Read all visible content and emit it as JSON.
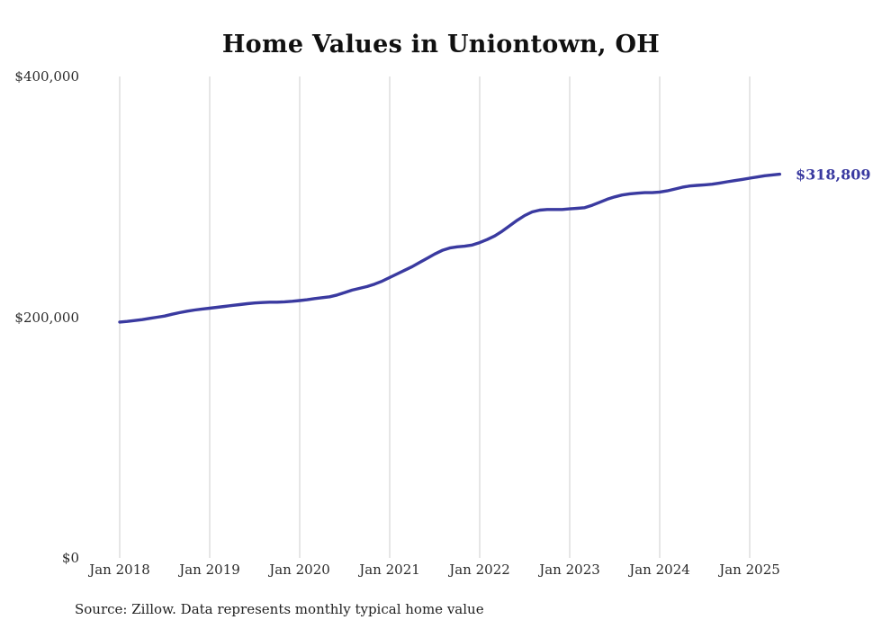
{
  "source": "Source: Zillow. Data represents monthly typical home value",
  "colors": {
    "line": "#3a3aa0",
    "grid": "#cccccc",
    "text": "#2b2b2b",
    "title": "#111111"
  },
  "chart_data": {
    "type": "line",
    "title": "Home Values in Uniontown, OH",
    "xlabel": "",
    "ylabel": "",
    "ylim": [
      0,
      400000
    ],
    "grid": "vertical-yearly",
    "legend": "none",
    "x_start": "Jan 2018",
    "x_interval": "monthly",
    "x_tick_labels": [
      "Jan 2018",
      "Jan 2019",
      "Jan 2020",
      "Jan 2021",
      "Jan 2022",
      "Jan 2023",
      "Jan 2024",
      "Jan 2025"
    ],
    "y_ticks": [
      {
        "label": "$0",
        "value": 0
      },
      {
        "label": "$200,000",
        "value": 200000
      },
      {
        "label": "$400,000",
        "value": 400000
      }
    ],
    "series_name": "Typical home value",
    "values": [
      196000,
      196500,
      197200,
      198000,
      199000,
      200000,
      201000,
      202500,
      203800,
      205000,
      206000,
      206800,
      207500,
      208200,
      209000,
      209800,
      210500,
      211200,
      211800,
      212200,
      212500,
      212500,
      212800,
      213200,
      213800,
      214500,
      215500,
      216200,
      217000,
      218500,
      220500,
      222500,
      224000,
      225500,
      227500,
      230000,
      233000,
      236000,
      239000,
      242000,
      245500,
      249000,
      252500,
      255500,
      257500,
      258500,
      259000,
      260000,
      262000,
      264500,
      267500,
      271500,
      276000,
      280500,
      284500,
      287500,
      289000,
      289500,
      289500,
      289500,
      290000,
      290500,
      291000,
      293000,
      295500,
      298000,
      300000,
      301500,
      302500,
      303000,
      303500,
      303500,
      304000,
      305000,
      306500,
      308000,
      309000,
      309500,
      310000,
      310500,
      311500,
      312500,
      313500,
      314500,
      315500,
      316500,
      317500,
      318200,
      318809
    ],
    "end_value": 318809,
    "end_label": "$318,809"
  }
}
